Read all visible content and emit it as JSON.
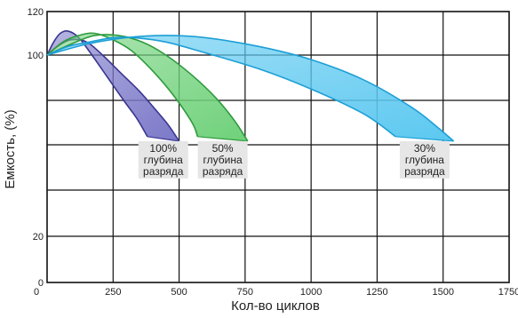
{
  "chart_data": {
    "type": "area",
    "xlabel": "Кол-во циклов",
    "ylabel": "Емкость, (%)",
    "xlim": [
      0,
      1750
    ],
    "ylim": [
      0,
      120
    ],
    "x_ticks": [
      "0",
      "250",
      "500",
      "750",
      "1000",
      "1250",
      "1500",
      "1750"
    ],
    "y_ticks": [
      "0",
      "20",
      "100",
      "120"
    ],
    "grid": true,
    "series": [
      {
        "label": [
          "100%",
          "глубина",
          "разряда"
        ],
        "color": "#7b78c8",
        "edge_color": "#3a3690",
        "upper": [
          [
            0,
            100
          ],
          [
            25,
            106
          ],
          [
            50,
            110
          ],
          [
            80,
            111
          ],
          [
            120,
            108
          ],
          [
            170,
            100
          ],
          [
            230,
            90
          ],
          [
            290,
            80
          ],
          [
            340,
            72
          ],
          [
            380,
            64
          ]
        ],
        "lower": [
          [
            0,
            100
          ],
          [
            40,
            104
          ],
          [
            90,
            107
          ],
          [
            150,
            106
          ],
          [
            210,
            100
          ],
          [
            280,
            92
          ],
          [
            350,
            84
          ],
          [
            410,
            76
          ],
          [
            460,
            69
          ],
          [
            500,
            62
          ]
        ]
      },
      {
        "label": [
          "50%",
          "глубина",
          "разряда"
        ],
        "color": "#6fd17a",
        "edge_color": "#2e9a3c",
        "upper": [
          [
            0,
            100
          ],
          [
            60,
            106
          ],
          [
            120,
            109
          ],
          [
            180,
            110
          ],
          [
            250,
            107
          ],
          [
            320,
            102
          ],
          [
            400,
            93
          ],
          [
            480,
            82
          ],
          [
            550,
            70
          ],
          [
            570,
            64
          ]
        ],
        "lower": [
          [
            0,
            100
          ],
          [
            90,
            105
          ],
          [
            180,
            109
          ],
          [
            270,
            109
          ],
          [
            360,
            106
          ],
          [
            450,
            100
          ],
          [
            550,
            91
          ],
          [
            640,
            81
          ],
          [
            710,
            71
          ],
          [
            760,
            62
          ]
        ]
      },
      {
        "label": [
          "30%",
          "глубина",
          "разряда"
        ],
        "color": "#5cc8f0",
        "edge_color": "#1c9fd6",
        "upper": [
          [
            0,
            100
          ],
          [
            80,
            104
          ],
          [
            160,
            106
          ],
          [
            250,
            108
          ],
          [
            330,
            108
          ],
          [
            450,
            106
          ],
          [
            600,
            101
          ],
          [
            800,
            94
          ],
          [
            1000,
            85
          ],
          [
            1200,
            74
          ],
          [
            1320,
            64
          ]
        ],
        "lower": [
          [
            0,
            100
          ],
          [
            150,
            105
          ],
          [
            300,
            108
          ],
          [
            450,
            109
          ],
          [
            600,
            108
          ],
          [
            800,
            104
          ],
          [
            1000,
            98
          ],
          [
            1200,
            89
          ],
          [
            1380,
            77
          ],
          [
            1480,
            68
          ],
          [
            1540,
            62
          ]
        ]
      }
    ]
  }
}
